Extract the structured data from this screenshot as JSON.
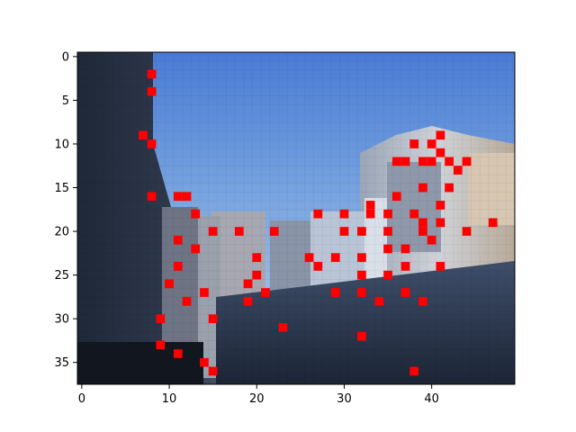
{
  "chart_data": {
    "type": "heatmap",
    "title": "",
    "xlabel": "",
    "ylabel": "",
    "grid": false,
    "legend": "none",
    "image_description_kind": "low-resolution pixelated city street photo (blue sky between buildings)",
    "image_cols": 50,
    "image_rows": 38,
    "xlim": [
      -0.5,
      49.5
    ],
    "ylim": [
      37.5,
      -0.5
    ],
    "x_ticks": [
      0,
      10,
      20,
      30,
      40
    ],
    "y_ticks": [
      0,
      5,
      10,
      15,
      20,
      25,
      30,
      35
    ],
    "marker_color": "#ff0000",
    "marker_shape": "square",
    "points": [
      [
        8,
        2
      ],
      [
        8,
        4
      ],
      [
        7,
        9
      ],
      [
        8,
        10
      ],
      [
        8,
        16
      ],
      [
        11,
        16
      ],
      [
        12,
        16
      ],
      [
        13,
        18
      ],
      [
        11,
        21
      ],
      [
        15,
        20
      ],
      [
        13,
        22
      ],
      [
        18,
        20
      ],
      [
        22,
        20
      ],
      [
        20,
        23
      ],
      [
        20,
        25
      ],
      [
        11,
        24
      ],
      [
        10,
        26
      ],
      [
        19,
        26
      ],
      [
        21,
        27
      ],
      [
        14,
        27
      ],
      [
        12,
        28
      ],
      [
        19,
        28
      ],
      [
        9,
        30
      ],
      [
        15,
        30
      ],
      [
        9,
        33
      ],
      [
        11,
        34
      ],
      [
        14,
        35
      ],
      [
        15,
        36
      ],
      [
        23,
        31
      ],
      [
        27,
        18
      ],
      [
        30,
        18
      ],
      [
        33,
        17
      ],
      [
        33,
        18
      ],
      [
        35,
        18
      ],
      [
        30,
        20
      ],
      [
        32,
        20
      ],
      [
        35,
        20
      ],
      [
        26,
        23
      ],
      [
        27,
        24
      ],
      [
        29,
        23
      ],
      [
        32,
        23
      ],
      [
        35,
        22
      ],
      [
        37,
        22
      ],
      [
        32,
        25
      ],
      [
        35,
        25
      ],
      [
        37,
        24
      ],
      [
        29,
        27
      ],
      [
        32,
        27
      ],
      [
        34,
        28
      ],
      [
        37,
        27
      ],
      [
        39,
        28
      ],
      [
        32,
        32
      ],
      [
        38,
        36
      ],
      [
        36,
        12
      ],
      [
        37,
        12
      ],
      [
        38,
        10
      ],
      [
        39,
        12
      ],
      [
        40,
        10
      ],
      [
        40,
        12
      ],
      [
        41,
        9
      ],
      [
        42,
        12
      ],
      [
        41,
        11
      ],
      [
        36,
        16
      ],
      [
        39,
        15
      ],
      [
        42,
        15
      ],
      [
        43,
        13
      ],
      [
        44,
        12
      ],
      [
        38,
        18
      ],
      [
        39,
        19
      ],
      [
        41,
        17
      ],
      [
        41,
        19
      ],
      [
        39,
        20
      ],
      [
        40,
        21
      ],
      [
        44,
        20
      ],
      [
        47,
        19
      ],
      [
        41,
        24
      ]
    ]
  }
}
